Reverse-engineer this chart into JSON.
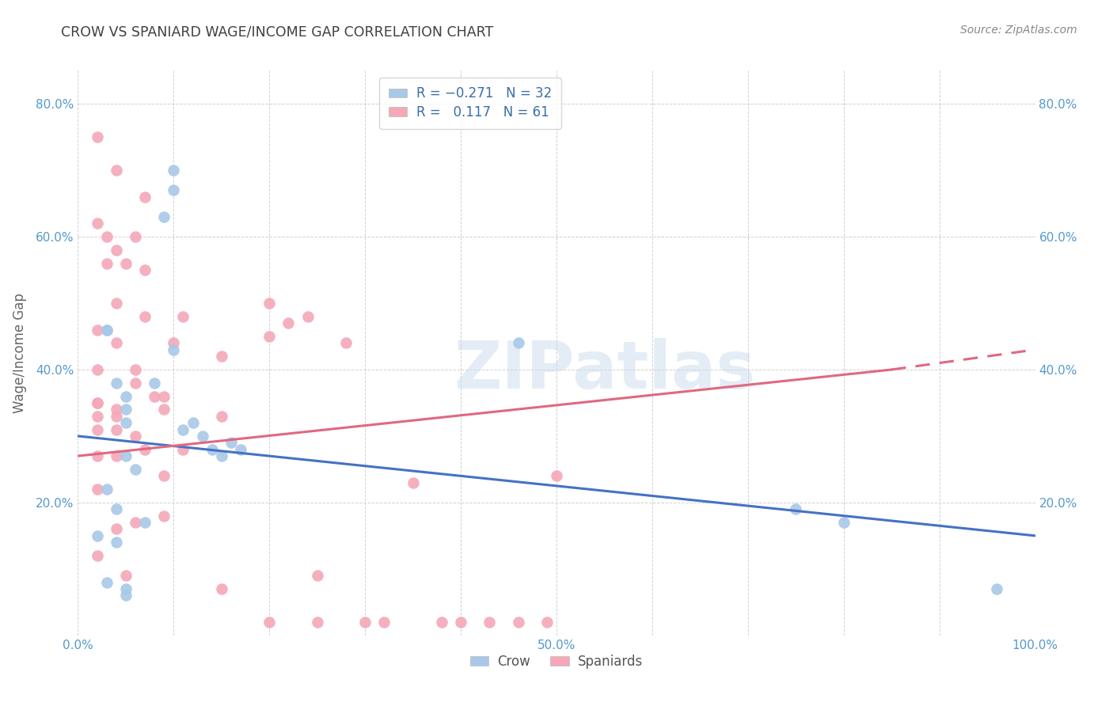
{
  "title": "CROW VS SPANIARD WAGE/INCOME GAP CORRELATION CHART",
  "source": "Source: ZipAtlas.com",
  "ylabel": "Wage/Income Gap",
  "watermark": "ZIPatlas",
  "crow_R": -0.271,
  "crow_N": 32,
  "spaniard_R": 0.117,
  "spaniard_N": 61,
  "crow_color": "#A8C8E8",
  "spaniard_color": "#F4A8B8",
  "crow_line_color": "#4472C4",
  "spaniard_line_color": "#E06880",
  "background_color": "#FFFFFF",
  "grid_color": "#CCCCCC",
  "title_color": "#404040",
  "axis_tick_color": "#5599CC",
  "legend_text_color": "#3A6EA8",
  "source_color": "#888888",
  "ylabel_color": "#666666",
  "crow_x": [
    3,
    5,
    8,
    9,
    10,
    10,
    10,
    11,
    12,
    13,
    14,
    15,
    16,
    17,
    3,
    4,
    5,
    5,
    6,
    7,
    2,
    3,
    4,
    5,
    5,
    3,
    4,
    5,
    46,
    75,
    80,
    96
  ],
  "crow_y": [
    46,
    36,
    38,
    63,
    67,
    70,
    43,
    31,
    32,
    30,
    28,
    27,
    29,
    28,
    46,
    38,
    34,
    32,
    25,
    17,
    15,
    22,
    19,
    7,
    27,
    8,
    14,
    6,
    44,
    19,
    17,
    7
  ],
  "spaniard_x": [
    2,
    4,
    3,
    6,
    3,
    5,
    7,
    9,
    2,
    4,
    6,
    8,
    2,
    4,
    2,
    4,
    6,
    11,
    2,
    4,
    6,
    9,
    11,
    15,
    20,
    2,
    4,
    7,
    10,
    2,
    4,
    2,
    6,
    9,
    2,
    5,
    15,
    20,
    25,
    2,
    4,
    7,
    9,
    15,
    25,
    30,
    32,
    35,
    38,
    40,
    43,
    46,
    49,
    50,
    20,
    22,
    24,
    28,
    2,
    4,
    7
  ],
  "spaniard_y": [
    33,
    50,
    60,
    60,
    56,
    56,
    48,
    34,
    40,
    34,
    38,
    36,
    31,
    31,
    27,
    27,
    30,
    28,
    46,
    44,
    40,
    36,
    48,
    42,
    45,
    62,
    58,
    55,
    44,
    22,
    16,
    35,
    17,
    18,
    12,
    9,
    7,
    2,
    2,
    35,
    33,
    28,
    24,
    33,
    9,
    2,
    2,
    23,
    2,
    2,
    2,
    2,
    2,
    24,
    50,
    47,
    48,
    44,
    75,
    70,
    66
  ],
  "xlim": [
    0,
    100
  ],
  "ylim": [
    0,
    85
  ],
  "crow_trend": [
    0,
    100,
    30,
    15
  ],
  "spaniard_trend_solid": [
    0,
    85,
    27,
    40
  ],
  "spaniard_trend_dashed": [
    85,
    100,
    40,
    43
  ]
}
